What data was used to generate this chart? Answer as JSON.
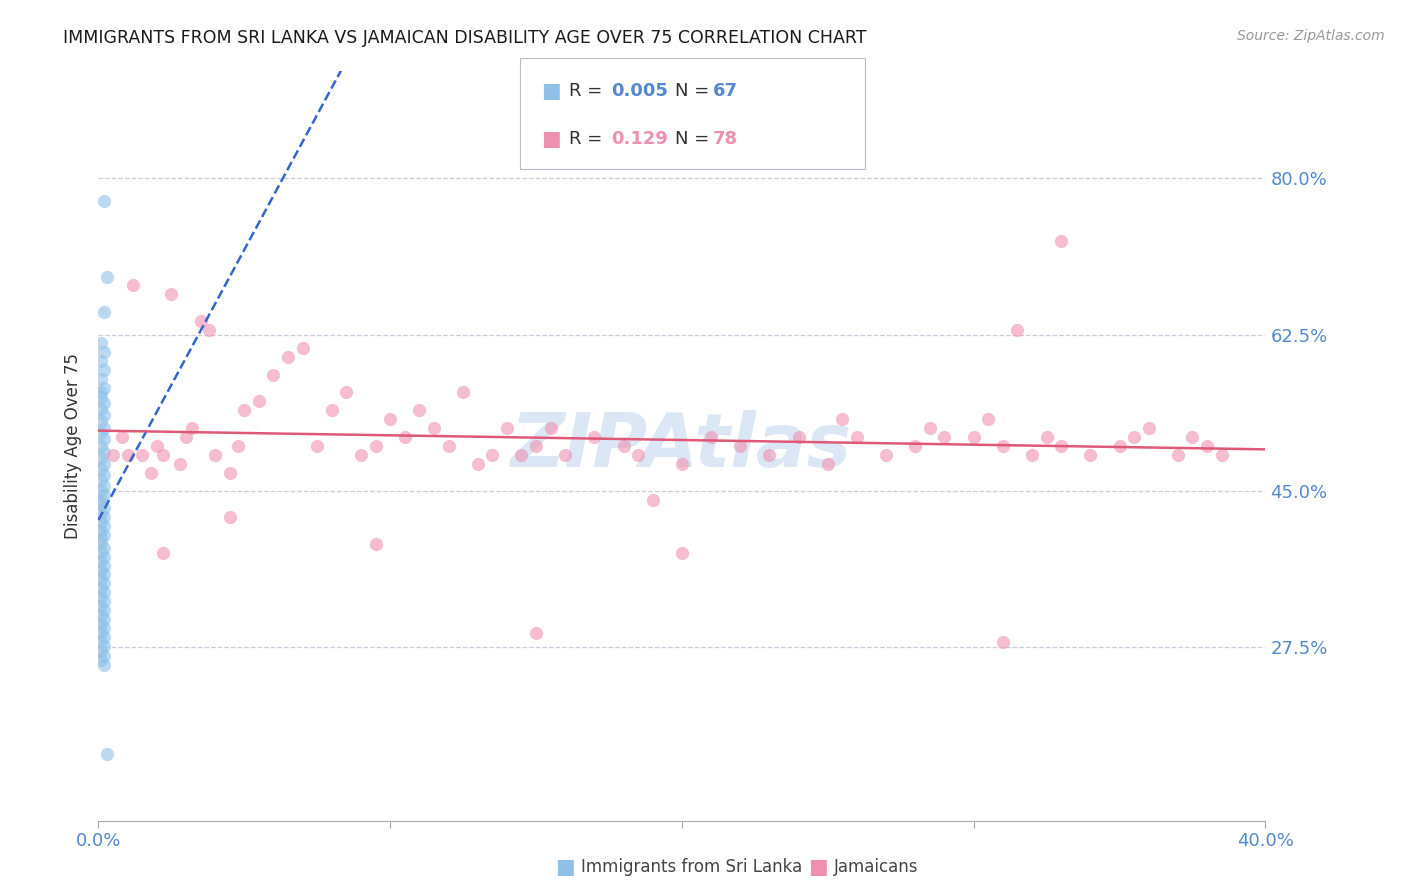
{
  "title": "IMMIGRANTS FROM SRI LANKA VS JAMAICAN DISABILITY AGE OVER 75 CORRELATION CHART",
  "source": "Source: ZipAtlas.com",
  "ylabel_label": "Disability Age Over 75",
  "y_ticks": [
    0.275,
    0.45,
    0.625,
    0.8
  ],
  "y_tick_labels": [
    "27.5%",
    "45.0%",
    "62.5%",
    "80.0%"
  ],
  "x_range": [
    0.0,
    0.4
  ],
  "y_range": [
    0.08,
    0.92
  ],
  "series1_name": "Immigrants from Sri Lanka",
  "series2_name": "Jamaicans",
  "series1_color": "#90c0e8",
  "series2_color": "#f090b0",
  "series1_trend_color": "#3366cc",
  "series2_trend_color": "#e05878",
  "background_color": "#ffffff",
  "grid_color": "#ccccdd",
  "tick_label_color": "#5588cc",
  "watermark": "ZIPAtlas",
  "watermark_color": "#b8d0ea",
  "sri_lanka_x": [
    0.002,
    0.003,
    0.002,
    0.001,
    0.002,
    0.001,
    0.002,
    0.001,
    0.002,
    0.001,
    0.001,
    0.002,
    0.001,
    0.002,
    0.001,
    0.002,
    0.001,
    0.002,
    0.001,
    0.002,
    0.001,
    0.002,
    0.001,
    0.002,
    0.001,
    0.002,
    0.001,
    0.002,
    0.001,
    0.001,
    0.002,
    0.001,
    0.002,
    0.001,
    0.002,
    0.001,
    0.002,
    0.001,
    0.001,
    0.002,
    0.001,
    0.002,
    0.001,
    0.002,
    0.001,
    0.002,
    0.001,
    0.002,
    0.001,
    0.002,
    0.001,
    0.002,
    0.001,
    0.002,
    0.001,
    0.002,
    0.001,
    0.002,
    0.001,
    0.002,
    0.001,
    0.002,
    0.001,
    0.002,
    0.001,
    0.002,
    0.003
  ],
  "sri_lanka_y": [
    0.775,
    0.69,
    0.65,
    0.615,
    0.605,
    0.595,
    0.585,
    0.575,
    0.565,
    0.56,
    0.555,
    0.548,
    0.542,
    0.535,
    0.528,
    0.52,
    0.515,
    0.508,
    0.5,
    0.493,
    0.487,
    0.48,
    0.474,
    0.467,
    0.462,
    0.455,
    0.45,
    0.445,
    0.44,
    0.435,
    0.43,
    0.425,
    0.42,
    0.415,
    0.41,
    0.405,
    0.4,
    0.396,
    0.391,
    0.386,
    0.381,
    0.376,
    0.371,
    0.366,
    0.361,
    0.356,
    0.351,
    0.346,
    0.341,
    0.336,
    0.331,
    0.326,
    0.321,
    0.316,
    0.311,
    0.306,
    0.301,
    0.296,
    0.291,
    0.286,
    0.281,
    0.276,
    0.27,
    0.265,
    0.26,
    0.255,
    0.155
  ],
  "jamaican_x": [
    0.005,
    0.008,
    0.01,
    0.012,
    0.015,
    0.018,
    0.02,
    0.022,
    0.025,
    0.028,
    0.03,
    0.032,
    0.035,
    0.038,
    0.04,
    0.045,
    0.048,
    0.05,
    0.055,
    0.06,
    0.065,
    0.07,
    0.075,
    0.08,
    0.085,
    0.09,
    0.095,
    0.1,
    0.105,
    0.11,
    0.115,
    0.12,
    0.125,
    0.13,
    0.135,
    0.14,
    0.145,
    0.15,
    0.155,
    0.16,
    0.17,
    0.18,
    0.185,
    0.19,
    0.2,
    0.21,
    0.22,
    0.23,
    0.24,
    0.25,
    0.255,
    0.26,
    0.27,
    0.28,
    0.285,
    0.29,
    0.3,
    0.305,
    0.31,
    0.32,
    0.325,
    0.33,
    0.34,
    0.35,
    0.355,
    0.36,
    0.37,
    0.375,
    0.38,
    0.385,
    0.022,
    0.045,
    0.095,
    0.15,
    0.2,
    0.31,
    0.315,
    0.33
  ],
  "jamaican_y": [
    0.49,
    0.51,
    0.49,
    0.68,
    0.49,
    0.47,
    0.5,
    0.49,
    0.67,
    0.48,
    0.51,
    0.52,
    0.64,
    0.63,
    0.49,
    0.47,
    0.5,
    0.54,
    0.55,
    0.58,
    0.6,
    0.61,
    0.5,
    0.54,
    0.56,
    0.49,
    0.5,
    0.53,
    0.51,
    0.54,
    0.52,
    0.5,
    0.56,
    0.48,
    0.49,
    0.52,
    0.49,
    0.5,
    0.52,
    0.49,
    0.51,
    0.5,
    0.49,
    0.44,
    0.48,
    0.51,
    0.5,
    0.49,
    0.51,
    0.48,
    0.53,
    0.51,
    0.49,
    0.5,
    0.52,
    0.51,
    0.51,
    0.53,
    0.5,
    0.49,
    0.51,
    0.5,
    0.49,
    0.5,
    0.51,
    0.52,
    0.49,
    0.51,
    0.5,
    0.49,
    0.38,
    0.42,
    0.39,
    0.29,
    0.38,
    0.28,
    0.63,
    0.73
  ]
}
